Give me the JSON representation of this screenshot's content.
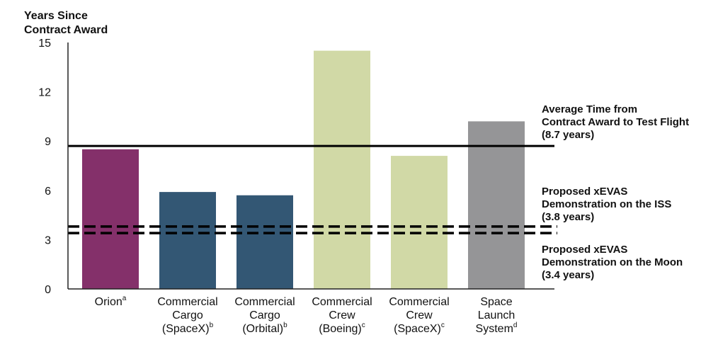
{
  "chart_data": {
    "type": "bar",
    "ylabel_lines": [
      "Years Since",
      "Contract Award"
    ],
    "ylim": [
      0,
      15
    ],
    "yticks": [
      "0",
      "3",
      "6",
      "9",
      "12",
      "15"
    ],
    "categories": [
      {
        "lines": [
          "Orion"
        ],
        "sup": "a",
        "value": 8.5,
        "color": "#84306a"
      },
      {
        "lines": [
          "Commercial",
          "Cargo",
          "(SpaceX)"
        ],
        "sup": "b",
        "value": 5.9,
        "color": "#335774"
      },
      {
        "lines": [
          "Commercial",
          "Cargo",
          "(Orbital)"
        ],
        "sup": "b",
        "value": 5.7,
        "color": "#335774"
      },
      {
        "lines": [
          "Commercial",
          "Crew",
          "(Boeing)"
        ],
        "sup": "c",
        "value": 14.5,
        "color": "#d1d9a6"
      },
      {
        "lines": [
          "Commercial",
          "Crew",
          "(SpaceX)"
        ],
        "sup": "c",
        "value": 8.1,
        "color": "#d1d9a6"
      },
      {
        "lines": [
          "Space",
          "Launch",
          "System"
        ],
        "sup": "d",
        "value": 10.2,
        "color": "#959597"
      }
    ],
    "reference_lines": [
      {
        "value": 8.7,
        "style": "solid",
        "label_lines": [
          "Average Time from",
          "Contract Award to Test Flight",
          "(8.7 years)"
        ]
      },
      {
        "value": 3.8,
        "style": "dashed",
        "label_lines": [
          "Proposed xEVAS",
          "Demonstration on the ISS",
          "(3.8 years)"
        ]
      },
      {
        "value": 3.4,
        "style": "dashed",
        "label_lines": [
          "Proposed xEVAS",
          "Demonstration on the Moon",
          "(3.4 years)"
        ]
      }
    ]
  }
}
